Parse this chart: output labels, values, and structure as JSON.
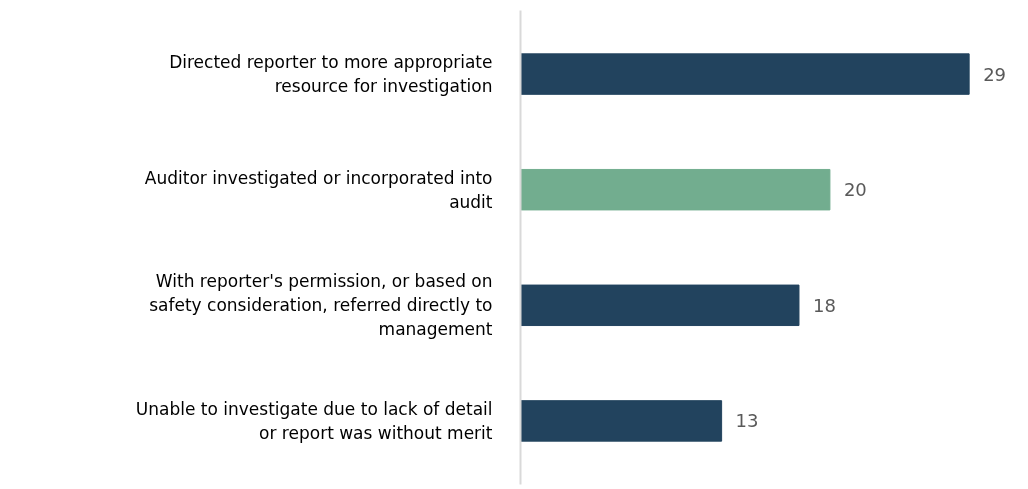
{
  "chart_data": {
    "type": "bar",
    "orientation": "horizontal",
    "categories": [
      "Directed reporter to more appropriate resource for investigation",
      "Auditor investigated or incorporated into audit",
      "With reporter's permission, or based on safety consideration, referred directly to management",
      "Unable to investigate due to lack of detail or report was without merit"
    ],
    "values": [
      29,
      20,
      18,
      13
    ],
    "colors": [
      "#22435e",
      "#72ad8f",
      "#22435e",
      "#22435e"
    ],
    "data_labels": true,
    "tick_labels": "y",
    "grid": false
  }
}
